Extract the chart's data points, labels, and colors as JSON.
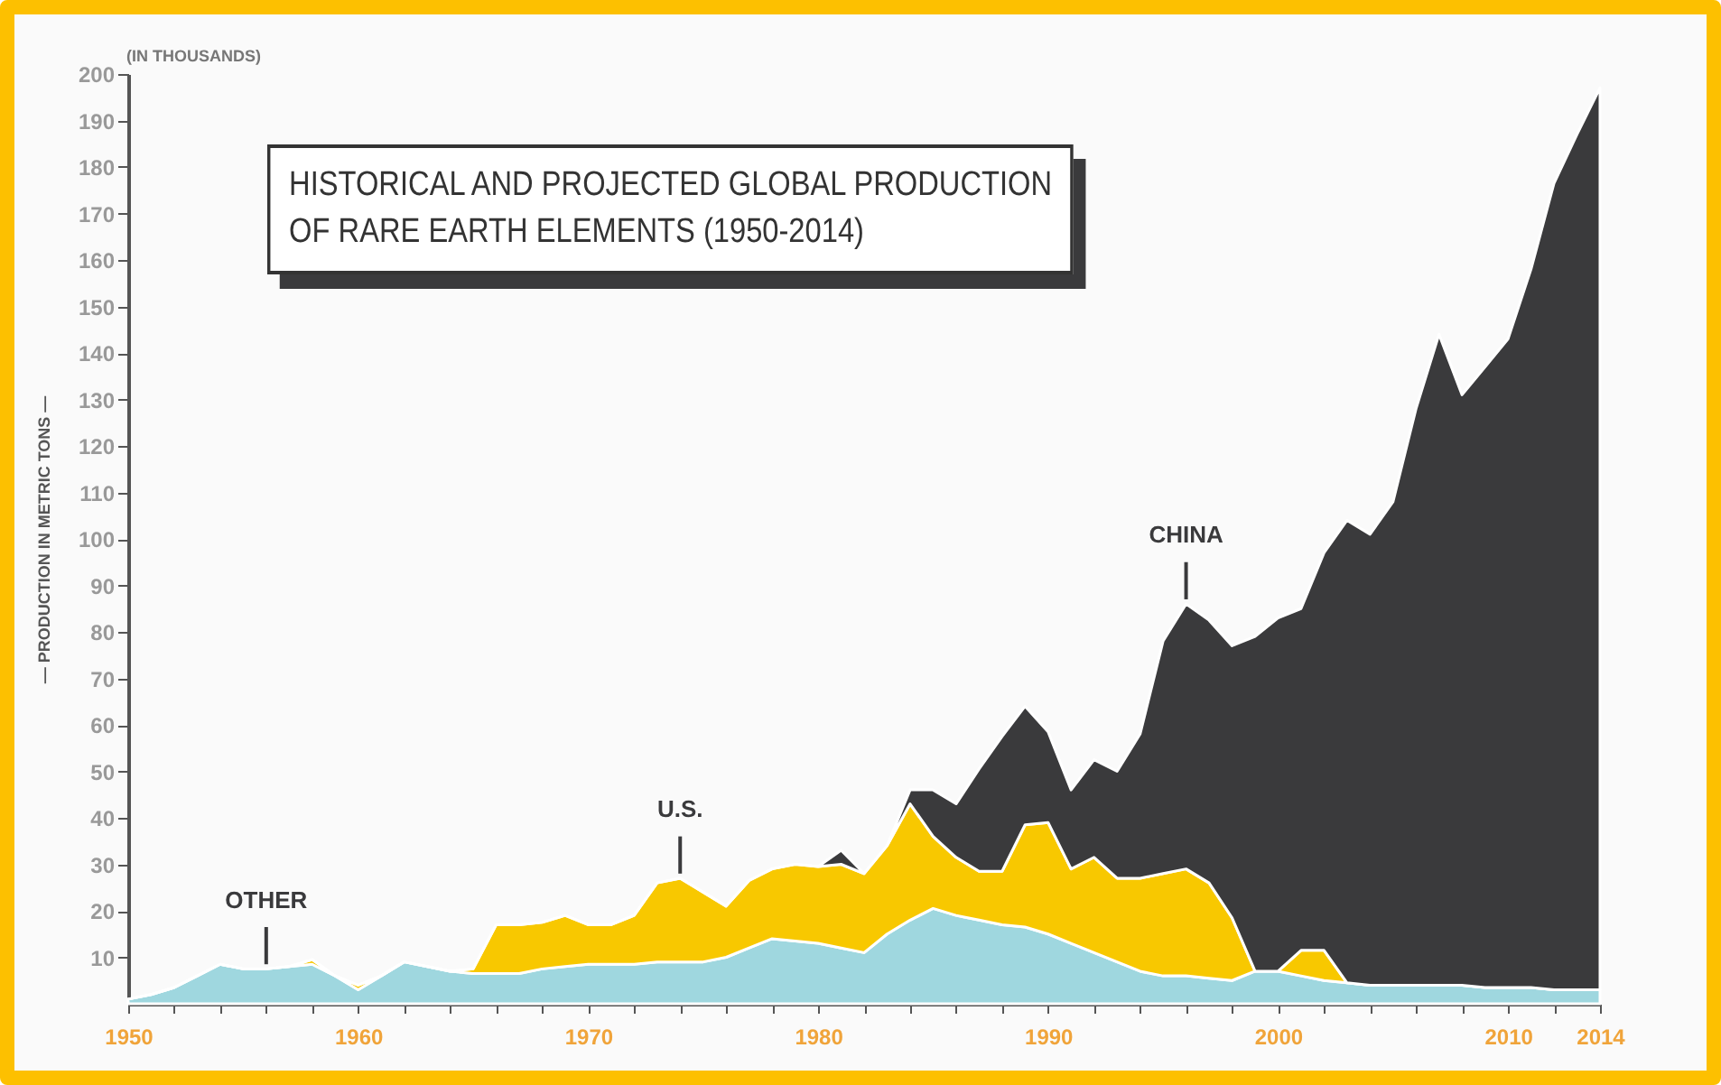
{
  "chart_data": {
    "type": "area",
    "title": "HISTORICAL AND PROJECTED GLOBAL PRODUCTION\nOF RARE EARTH ELEMENTS (1950-2014)",
    "ylabel": "— PRODUCTION IN METRIC TONS —",
    "annotations": [
      "(IN THOUSANDS)"
    ],
    "stacked": true,
    "legend": false,
    "grid": false,
    "x": [
      1950,
      1951,
      1952,
      1953,
      1954,
      1955,
      1956,
      1957,
      1958,
      1959,
      1960,
      1961,
      1962,
      1963,
      1964,
      1965,
      1966,
      1967,
      1968,
      1969,
      1970,
      1971,
      1972,
      1973,
      1974,
      1975,
      1976,
      1977,
      1978,
      1979,
      1980,
      1981,
      1982,
      1983,
      1984,
      1985,
      1986,
      1987,
      1988,
      1989,
      1990,
      1991,
      1992,
      1993,
      1994,
      1995,
      1996,
      1997,
      1998,
      1999,
      2000,
      2001,
      2002,
      2003,
      2004,
      2005,
      2006,
      2007,
      2008,
      2009,
      2010,
      2011,
      2012,
      2013,
      2014
    ],
    "series": [
      {
        "name": "OTHER",
        "color": "#9fd7df",
        "values": [
          1,
          2,
          3.5,
          6,
          8.5,
          7.5,
          7.5,
          8,
          8.5,
          6,
          3,
          6,
          9,
          8,
          7,
          6.5,
          6.5,
          6.5,
          7.5,
          8,
          8.5,
          8.5,
          8.5,
          9,
          9,
          9,
          10,
          12,
          14,
          13.5,
          13,
          12,
          11,
          15,
          18,
          20.5,
          19,
          18,
          17,
          16.5,
          15,
          13,
          11,
          9,
          7,
          6,
          6,
          5.5,
          5,
          7,
          7,
          6,
          5,
          4.5,
          4,
          4,
          4,
          4,
          4,
          3.5,
          3.5,
          3.5,
          3,
          3,
          3
        ]
      },
      {
        "name": "U.S.",
        "color": "#f8c800",
        "values": [
          0,
          0,
          0,
          0,
          0,
          0,
          0,
          0,
          1,
          0,
          1,
          0,
          0,
          0,
          0,
          1,
          10.5,
          10.5,
          10,
          11,
          8.5,
          8.5,
          10.5,
          17,
          18,
          15,
          11,
          14.5,
          15,
          16.5,
          16.5,
          18,
          17,
          19,
          25,
          15.5,
          12.5,
          10.5,
          11.5,
          22,
          24,
          16,
          20.5,
          18,
          20,
          22,
          23,
          20.5,
          13.5,
          0,
          0,
          5.5,
          6.5,
          0,
          0,
          0,
          0,
          0,
          0,
          0,
          0,
          0,
          0,
          0,
          0
        ]
      },
      {
        "name": "CHINA",
        "color": "#3a3a3c",
        "values": [
          0,
          0,
          0,
          0,
          0,
          0,
          0,
          0,
          0,
          0,
          0,
          0,
          0,
          0,
          0,
          0,
          0,
          0,
          0,
          0,
          0,
          0,
          0,
          0,
          0,
          0,
          0,
          0,
          0,
          0,
          0,
          3,
          0,
          0,
          3,
          10,
          11.5,
          22,
          29,
          25.5,
          19.5,
          17,
          21,
          23,
          31,
          50,
          57,
          56.5,
          58.5,
          72,
          76,
          73.5,
          85.5,
          99.5,
          97,
          104,
          124,
          140,
          127,
          133.5,
          139.5,
          154.5,
          173.5,
          184,
          194
        ]
      }
    ],
    "xlim": [
      1950,
      2014
    ],
    "xticks": [
      1950,
      {
        "value": 1952,
        "label": null
      },
      {
        "value": 1954,
        "label": null
      },
      {
        "value": 1956,
        "label": null
      },
      {
        "value": 1958,
        "label": null
      },
      1960,
      {
        "value": 1962,
        "label": null
      },
      {
        "value": 1964,
        "label": null
      },
      {
        "value": 1966,
        "label": null
      },
      {
        "value": 1968,
        "label": null
      },
      1970,
      {
        "value": 1972,
        "label": null
      },
      {
        "value": 1974,
        "label": null
      },
      {
        "value": 1976,
        "label": null
      },
      {
        "value": 1978,
        "label": null
      },
      1980,
      {
        "value": 1982,
        "label": null
      },
      {
        "value": 1984,
        "label": null
      },
      {
        "value": 1986,
        "label": null
      },
      {
        "value": 1988,
        "label": null
      },
      1990,
      {
        "value": 1992,
        "label": null
      },
      {
        "value": 1994,
        "label": null
      },
      {
        "value": 1996,
        "label": null
      },
      {
        "value": 1998,
        "label": null
      },
      2000,
      {
        "value": 2002,
        "label": null
      },
      {
        "value": 2004,
        "label": null
      },
      {
        "value": 2006,
        "label": null
      },
      {
        "value": 2008,
        "label": null
      },
      2010,
      {
        "value": 2012,
        "label": null
      },
      2014
    ],
    "ylim": [
      0,
      200
    ],
    "yticks": [
      10,
      20,
      30,
      40,
      50,
      60,
      70,
      80,
      90,
      100,
      110,
      120,
      130,
      140,
      150,
      160,
      170,
      180,
      190,
      200
    ]
  }
}
